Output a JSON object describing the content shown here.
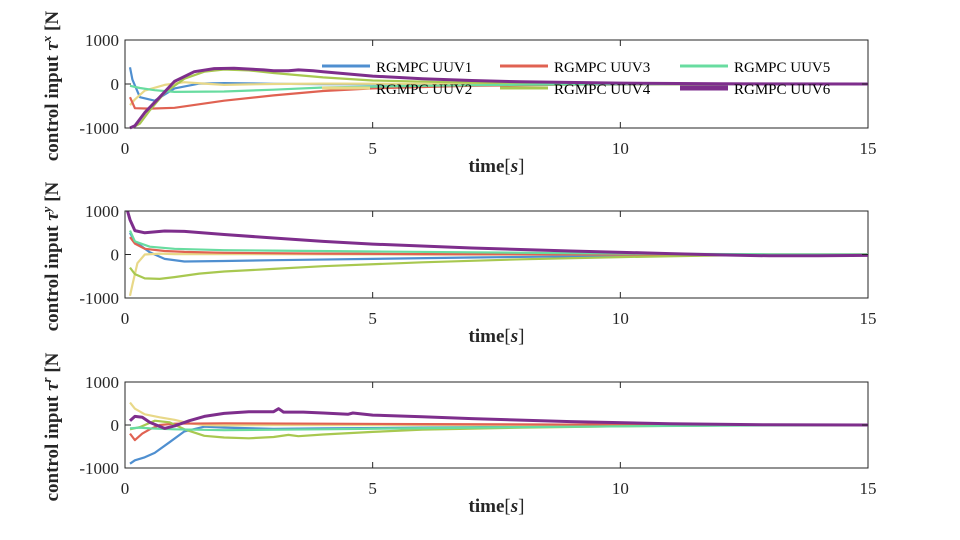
{
  "figure": {
    "legend": {
      "entries": [
        "RGMPC UUV1",
        "RGMPC UUV2",
        "RGMPC UUV3",
        "RGMPC UUV4",
        "RGMPC UUV5",
        "RGMPC UUV6"
      ]
    },
    "colors": {
      "UUV1": "#4f8fd0",
      "UUV2": "#e8d888",
      "UUV3": "#e06252",
      "UUV4": "#a8c850",
      "UUV5": "#68dca0",
      "UUV6": "#7e2e8c",
      "axis": "#262626"
    }
  },
  "chart_data": [
    {
      "type": "line",
      "id": "tau_x",
      "xlabel": "time[s]",
      "ylabel": "control input τ^x [N]",
      "ylabel_visible": "control input τ^x [N",
      "xlim": [
        0,
        15
      ],
      "ylim": [
        -1000,
        1000
      ],
      "xticks": [
        "0",
        "5",
        "10",
        "15"
      ],
      "yticks": [
        "1000",
        "0",
        "-1000"
      ],
      "series": [
        {
          "name": "RGMPC UUV1",
          "x": [
            0.1,
            0.15,
            0.3,
            0.6,
            1.0,
            1.5,
            2.0,
            3.0,
            4.0,
            6.0,
            9.0,
            12.0,
            15.0
          ],
          "y": [
            380,
            100,
            -300,
            -380,
            -100,
            10,
            20,
            5,
            -5,
            -10,
            -5,
            0,
            0
          ]
        },
        {
          "name": "RGMPC UUV2",
          "x": [
            0.1,
            0.2,
            0.4,
            0.8,
            1.2,
            1.6,
            2.0,
            2.5,
            3.0,
            4.0,
            6.0,
            9.0,
            12.0,
            15.0
          ],
          "y": [
            -480,
            -350,
            -150,
            -20,
            40,
            10,
            -20,
            -10,
            0,
            10,
            5,
            0,
            0,
            0
          ]
        },
        {
          "name": "RGMPC UUV3",
          "x": [
            0.1,
            0.2,
            0.5,
            1.0,
            2.0,
            3.0,
            4.0,
            5.0,
            7.0,
            9.0,
            12.0,
            15.0
          ],
          "y": [
            -300,
            -550,
            -560,
            -540,
            -380,
            -260,
            -160,
            -100,
            -40,
            -15,
            -5,
            0
          ]
        },
        {
          "name": "RGMPC UUV4",
          "x": [
            0.15,
            0.3,
            0.5,
            0.8,
            1.2,
            1.6,
            2.0,
            2.5,
            3.0,
            4.0,
            5.0,
            7.0,
            10.0,
            15.0
          ],
          "y": [
            -990,
            -900,
            -600,
            -200,
            120,
            280,
            330,
            310,
            250,
            150,
            80,
            30,
            0,
            0
          ]
        },
        {
          "name": "RGMPC UUV5",
          "x": [
            0.1,
            0.3,
            0.6,
            1.0,
            2.0,
            3.0,
            4.0,
            6.0,
            8.0,
            11.0,
            15.0
          ],
          "y": [
            -40,
            -90,
            -140,
            -180,
            -170,
            -130,
            -80,
            -40,
            -15,
            -5,
            0
          ]
        },
        {
          "name": "RGMPC UUV6",
          "x": [
            0.1,
            0.2,
            0.4,
            0.7,
            1.0,
            1.4,
            1.8,
            2.2,
            2.8,
            3.0,
            3.3,
            3.5,
            3.8,
            4.0,
            5.0,
            6.0,
            7.0,
            8.0,
            10.0,
            12.0,
            15.0
          ],
          "y": [
            -1000,
            -950,
            -650,
            -300,
            60,
            280,
            350,
            360,
            320,
            300,
            300,
            320,
            300,
            280,
            180,
            120,
            80,
            50,
            20,
            5,
            0
          ]
        }
      ]
    },
    {
      "type": "line",
      "id": "tau_y",
      "xlabel": "time[s]",
      "ylabel": "control input τ^y [N]",
      "ylabel_visible": "control input τ^y [N",
      "xlim": [
        0,
        15
      ],
      "ylim": [
        -1000,
        1000
      ],
      "xticks": [
        "0",
        "5",
        "10",
        "15"
      ],
      "yticks": [
        "1000",
        "0",
        "-1000"
      ],
      "series": [
        {
          "name": "RGMPC UUV1",
          "x": [
            0.1,
            0.2,
            0.5,
            0.8,
            1.2,
            2.0,
            3.0,
            5.0,
            7.0,
            10.0,
            12.0,
            15.0
          ],
          "y": [
            500,
            300,
            50,
            -100,
            -160,
            -150,
            -130,
            -100,
            -70,
            -30,
            -10,
            0
          ]
        },
        {
          "name": "RGMPC UUV2",
          "x": [
            0.1,
            0.15,
            0.25,
            0.4,
            0.7,
            1.0,
            2.0,
            4.0,
            6.0,
            10.0,
            15.0
          ],
          "y": [
            -950,
            -700,
            -200,
            0,
            20,
            10,
            10,
            5,
            0,
            0,
            0
          ]
        },
        {
          "name": "RGMPC UUV3",
          "x": [
            0.1,
            0.2,
            0.4,
            0.8,
            1.2,
            2.0,
            4.0,
            6.0,
            10.0,
            15.0
          ],
          "y": [
            400,
            250,
            130,
            80,
            60,
            40,
            20,
            10,
            0,
            0
          ]
        },
        {
          "name": "RGMPC UUV4",
          "x": [
            0.1,
            0.2,
            0.4,
            0.7,
            1.0,
            1.5,
            2.0,
            3.0,
            4.0,
            6.0,
            8.0,
            10.0,
            12.0,
            15.0
          ],
          "y": [
            -300,
            -450,
            -550,
            -560,
            -520,
            -440,
            -390,
            -330,
            -270,
            -180,
            -110,
            -60,
            -20,
            0
          ]
        },
        {
          "name": "RGMPC UUV5",
          "x": [
            0.1,
            0.2,
            0.5,
            1.0,
            2.0,
            3.0,
            5.0,
            7.0,
            9.0,
            11.0,
            13.0,
            15.0
          ],
          "y": [
            550,
            300,
            180,
            130,
            100,
            90,
            70,
            50,
            30,
            15,
            5,
            0
          ]
        },
        {
          "name": "RGMPC UUV6",
          "x": [
            0.05,
            0.1,
            0.2,
            0.4,
            0.8,
            1.2,
            2.0,
            3.0,
            4.0,
            5.0,
            7.0,
            9.0,
            11.0,
            12.0,
            13.0,
            14.0,
            15.0
          ],
          "y": [
            1000,
            800,
            550,
            500,
            540,
            530,
            460,
            380,
            300,
            240,
            150,
            80,
            20,
            -10,
            -30,
            -30,
            -20
          ]
        }
      ]
    },
    {
      "type": "line",
      "id": "tau_r",
      "xlabel": "time[s]",
      "ylabel": "control input τ^r [N]",
      "ylabel_visible": "control input τ^r [N",
      "xlim": [
        0,
        15
      ],
      "ylim": [
        -1000,
        1000
      ],
      "xticks": [
        "0",
        "5",
        "10",
        "15"
      ],
      "yticks": [
        "1000",
        "0",
        "-1000"
      ],
      "series": [
        {
          "name": "RGMPC UUV1",
          "x": [
            0.1,
            0.2,
            0.4,
            0.6,
            0.9,
            1.2,
            1.6,
            2.0,
            3.0,
            4.0,
            6.0,
            9.0,
            12.0,
            15.0
          ],
          "y": [
            -900,
            -820,
            -750,
            -650,
            -400,
            -150,
            -40,
            -60,
            -90,
            -80,
            -60,
            -30,
            -10,
            0
          ]
        },
        {
          "name": "RGMPC UUV2",
          "x": [
            0.1,
            0.2,
            0.4,
            0.7,
            1.0,
            1.3,
            1.6,
            2.0,
            3.0,
            5.0,
            8.0,
            12.0,
            15.0
          ],
          "y": [
            520,
            380,
            250,
            180,
            120,
            40,
            0,
            -10,
            0,
            0,
            0,
            0,
            0
          ]
        },
        {
          "name": "RGMPC UUV3",
          "x": [
            0.1,
            0.2,
            0.35,
            0.5,
            0.7,
            1.0,
            2.0,
            4.0,
            6.0,
            9.0,
            12.0,
            15.0
          ],
          "y": [
            -200,
            -350,
            -200,
            -100,
            0,
            30,
            40,
            30,
            20,
            10,
            0,
            0
          ]
        },
        {
          "name": "RGMPC UUV4",
          "x": [
            0.1,
            0.3,
            0.6,
            0.9,
            1.2,
            1.6,
            2.0,
            2.5,
            3.0,
            3.3,
            3.5,
            4.0,
            5.0,
            6.0,
            8.0,
            10.0,
            12.0,
            15.0
          ],
          "y": [
            -100,
            -50,
            100,
            60,
            -100,
            -250,
            -290,
            -310,
            -280,
            -230,
            -260,
            -220,
            -160,
            -110,
            -60,
            -30,
            -10,
            0
          ]
        },
        {
          "name": "RGMPC UUV5",
          "x": [
            0.1,
            0.3,
            0.5,
            1.0,
            2.0,
            4.0,
            7.0,
            10.0,
            13.0,
            15.0
          ],
          "y": [
            -80,
            -60,
            -80,
            -100,
            -120,
            -100,
            -60,
            -30,
            -10,
            0
          ]
        },
        {
          "name": "RGMPC UUV6",
          "x": [
            0.1,
            0.2,
            0.35,
            0.5,
            0.8,
            1.0,
            1.3,
            1.6,
            2.0,
            2.5,
            3.0,
            3.1,
            3.2,
            3.3,
            3.6,
            4.0,
            4.5,
            4.6,
            5.0,
            6.0,
            7.0,
            9.0,
            11.0,
            13.0,
            15.0
          ],
          "y": [
            100,
            200,
            180,
            60,
            -80,
            -20,
            100,
            200,
            270,
            310,
            310,
            380,
            300,
            300,
            300,
            280,
            250,
            280,
            230,
            190,
            150,
            80,
            30,
            5,
            0
          ]
        }
      ]
    }
  ]
}
